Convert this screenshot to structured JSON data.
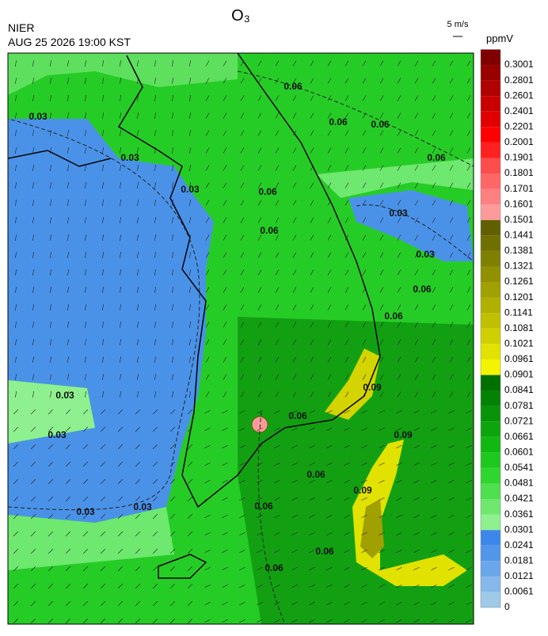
{
  "header": {
    "title": "O₃",
    "agency": "NIER",
    "datetime": "AUG 25 2026 19:00 KST",
    "wind_scale": "5 m/s",
    "unit": "ppmV"
  },
  "colorbar": {
    "labels": [
      "0",
      "0.0061",
      "0.0121",
      "0.0181",
      "0.0241",
      "0.0301",
      "0.0361",
      "0.0421",
      "0.0481",
      "0.0541",
      "0.0601",
      "0.0661",
      "0.0721",
      "0.0781",
      "0.0841",
      "0.0901",
      "0.0961",
      "0.1021",
      "0.1081",
      "0.1141",
      "0.1201",
      "0.1261",
      "0.1321",
      "0.1381",
      "0.1441",
      "0.1501",
      "0.1601",
      "0.1701",
      "0.1801",
      "0.1901",
      "0.2001",
      "0.2201",
      "0.2401",
      "0.2601",
      "0.2801",
      "0.3001"
    ],
    "colors": [
      "#9ecae8",
      "#86b8ea",
      "#6aa6ea",
      "#5296ea",
      "#3c88ea",
      "#8ef08e",
      "#6ee86e",
      "#4ee04e",
      "#30d630",
      "#1ec81e",
      "#12b812",
      "#0ca60c",
      "#089408",
      "#048204",
      "#007000",
      "#f4f400",
      "#e2e200",
      "#d0d000",
      "#c0c000",
      "#b0b000",
      "#a0a000",
      "#909000",
      "#808000",
      "#707000",
      "#606000",
      "#ff9a9a",
      "#ff8080",
      "#ff6666",
      "#ff4c4c",
      "#ff2020",
      "#ff0000",
      "#e00000",
      "#c80000",
      "#b00000",
      "#980000",
      "#800000"
    ]
  },
  "contour_labels": [
    "0.03",
    "0.03",
    "0.03",
    "0.03",
    "0.03",
    "0.03",
    "0.03",
    "0.03",
    "0.03",
    "0.06",
    "0.06",
    "0.06",
    "0.06",
    "0.06",
    "0.06",
    "0.06",
    "0.06",
    "0.06",
    "0.06",
    "0.06",
    "0.06",
    "0.06",
    "0.09",
    "0.09",
    "0.09"
  ]
}
